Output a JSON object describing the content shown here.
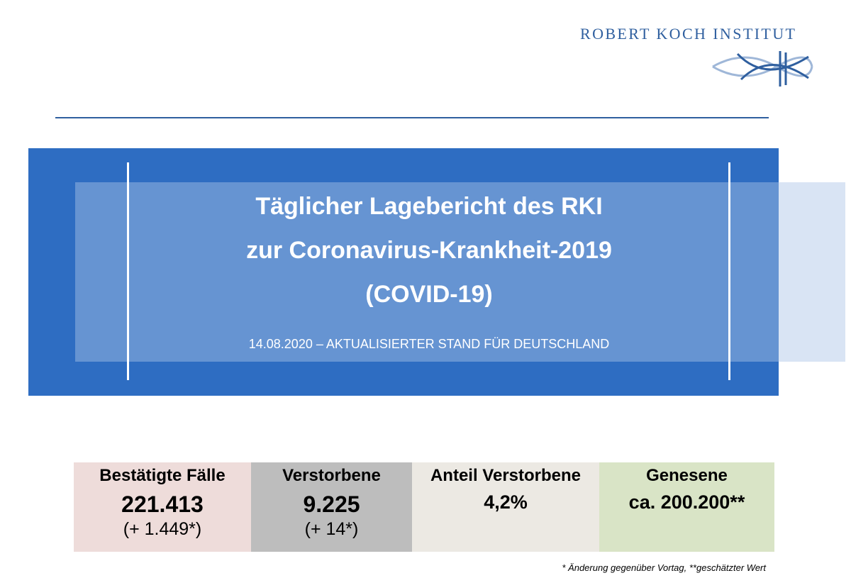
{
  "header": {
    "logo_text": "ROBERT KOCH INSTITUT",
    "logo_icon": "rki-logo-icon"
  },
  "banner": {
    "title_line1": "Täglicher Lagebericht des RKI",
    "title_line2": "zur Coronavirus-Krankheit-2019",
    "title_line3": "(COVID-19)",
    "subtitle": "14.08.2020 – AKTUALISIERTER STAND FÜR DEUTSCHLAND"
  },
  "stats": [
    {
      "label": "Bestätigte Fälle",
      "value": "221.413",
      "change": "(+ 1.449*)"
    },
    {
      "label": "Verstorbene",
      "value": "9.225",
      "change": "(+ 14*)"
    },
    {
      "label": "Anteil Verstorbene",
      "value": "4,2%",
      "change": ""
    },
    {
      "label": "Genesene",
      "value": "ca. 200.200**",
      "change": ""
    }
  ],
  "footnote": "* Änderung gegenüber Vortag, **geschätzter Wert",
  "colors": {
    "brand_blue": "#2e6dc2",
    "logo_blue": "#2f5f9f",
    "cases_bg": "#eedcda",
    "deaths_bg": "#bdbdbd",
    "share_bg": "#ece9e3",
    "recovered_bg": "#d9e4c6"
  }
}
